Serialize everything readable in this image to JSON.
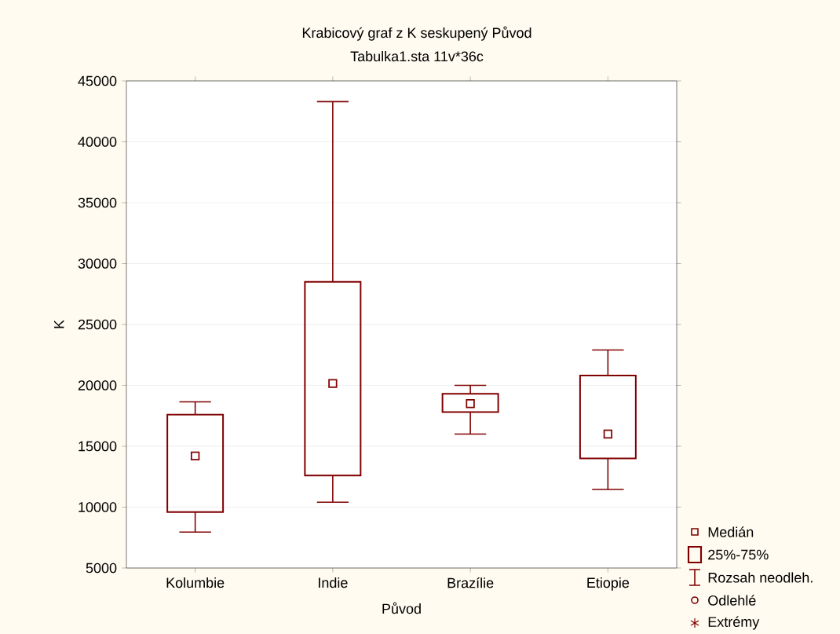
{
  "chart_data": {
    "type": "box",
    "title": "Krabicový graf z K seskupený Původ",
    "subtitle": "Tabulka1.sta 11v*36c",
    "xlabel": "Původ",
    "ylabel": "K",
    "categories": [
      "Kolumbie",
      "Indie",
      "Brazílie",
      "Etiopie"
    ],
    "series": [
      {
        "color": "#800000",
        "boxes": [
          {
            "low": 7950,
            "q1": 9600,
            "median": 14200,
            "q3": 17600,
            "high": 18650
          },
          {
            "low": 10400,
            "q1": 12600,
            "median": 20150,
            "q3": 28500,
            "high": 43300
          },
          {
            "low": 16000,
            "q1": 17800,
            "median": 18500,
            "q3": 19300,
            "high": 20000
          },
          {
            "low": 11450,
            "q1": 14000,
            "median": 16000,
            "q3": 20800,
            "high": 22900
          }
        ]
      }
    ],
    "ylim": [
      5000,
      45000
    ],
    "yticks": [
      5000,
      10000,
      15000,
      20000,
      25000,
      30000,
      35000,
      40000,
      45000
    ],
    "grid": "y",
    "marker": "square",
    "annotations": [
      "Medián",
      "25%-75%",
      "Rozsah neodleh.",
      "Odlehlé",
      "Extrémy"
    ]
  }
}
